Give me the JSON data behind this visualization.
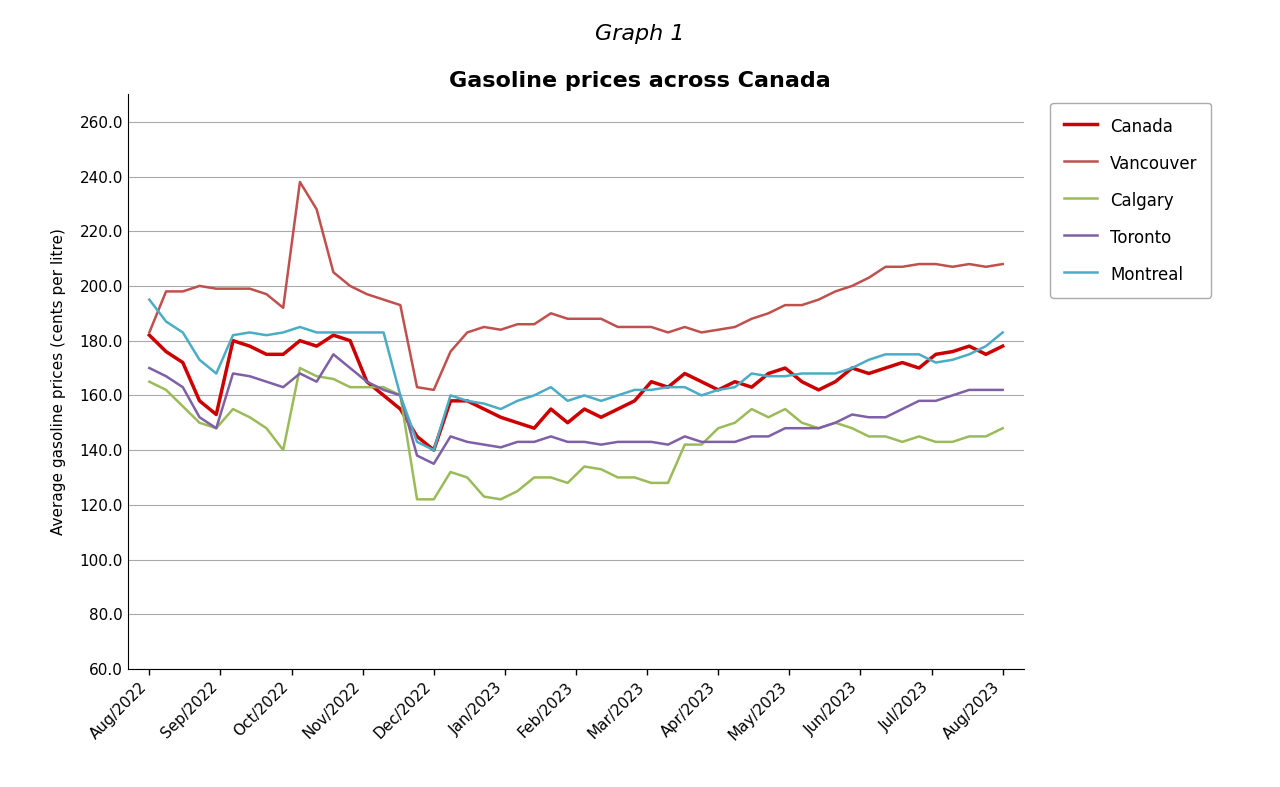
{
  "title_line1": "Graph 1",
  "title_line2": "Gasoline prices across Canada",
  "ylabel": "Average gasoline prices (cents per litre)",
  "ylim": [
    60.0,
    270.0
  ],
  "yticks": [
    60.0,
    80.0,
    100.0,
    120.0,
    140.0,
    160.0,
    180.0,
    200.0,
    220.0,
    240.0,
    260.0
  ],
  "x_labels": [
    "Aug/2022",
    "Sep/2022",
    "Oct/2022",
    "Nov/2022",
    "Dec/2022",
    "Jan/2023",
    "Feb/2023",
    "Mar/2023",
    "Apr/2023",
    "May/2023",
    "Jun/2023",
    "Jul/2023",
    "Aug/2023"
  ],
  "series": {
    "Canada": {
      "color": "#CC0000",
      "linewidth": 2.5,
      "values": [
        182,
        176,
        172,
        158,
        153,
        180,
        178,
        175,
        175,
        180,
        178,
        182,
        180,
        165,
        160,
        155,
        145,
        140,
        158,
        158,
        155,
        152,
        150,
        148,
        155,
        150,
        155,
        152,
        155,
        158,
        165,
        163,
        168,
        165,
        162,
        165,
        163,
        168,
        170,
        165,
        162,
        165,
        170,
        168,
        170,
        172,
        170,
        175,
        176,
        178,
        175,
        178
      ]
    },
    "Vancouver": {
      "color": "#C0504D",
      "linewidth": 1.8,
      "values": [
        183,
        198,
        198,
        200,
        199,
        199,
        199,
        197,
        192,
        238,
        228,
        205,
        200,
        197,
        195,
        193,
        163,
        162,
        176,
        183,
        185,
        184,
        186,
        186,
        190,
        188,
        188,
        188,
        185,
        185,
        185,
        183,
        185,
        183,
        184,
        185,
        188,
        190,
        193,
        193,
        195,
        198,
        200,
        203,
        207,
        207,
        208,
        208,
        207,
        208,
        207,
        208
      ]
    },
    "Calgary": {
      "color": "#9BBB59",
      "linewidth": 1.8,
      "values": [
        165,
        162,
        156,
        150,
        148,
        155,
        152,
        148,
        140,
        170,
        167,
        166,
        163,
        163,
        163,
        160,
        122,
        122,
        132,
        130,
        123,
        122,
        125,
        130,
        130,
        128,
        134,
        133,
        130,
        130,
        128,
        128,
        142,
        142,
        148,
        150,
        155,
        152,
        155,
        150,
        148,
        150,
        148,
        145,
        145,
        143,
        145,
        143,
        143,
        145,
        145,
        148
      ]
    },
    "Toronto": {
      "color": "#7F5FA5",
      "linewidth": 1.8,
      "values": [
        170,
        167,
        163,
        152,
        148,
        168,
        167,
        165,
        163,
        168,
        165,
        175,
        170,
        165,
        162,
        160,
        138,
        135,
        145,
        143,
        142,
        141,
        143,
        143,
        145,
        143,
        143,
        142,
        143,
        143,
        143,
        142,
        145,
        143,
        143,
        143,
        145,
        145,
        148,
        148,
        148,
        150,
        153,
        152,
        152,
        155,
        158,
        158,
        160,
        162,
        162,
        162
      ]
    },
    "Montreal": {
      "color": "#4BACC6",
      "linewidth": 1.8,
      "values": [
        195,
        187,
        183,
        173,
        168,
        182,
        183,
        182,
        183,
        185,
        183,
        183,
        183,
        183,
        183,
        160,
        143,
        140,
        160,
        158,
        157,
        155,
        158,
        160,
        163,
        158,
        160,
        158,
        160,
        162,
        162,
        163,
        163,
        160,
        162,
        163,
        168,
        167,
        167,
        168,
        168,
        168,
        170,
        173,
        175,
        175,
        175,
        172,
        173,
        175,
        178,
        183
      ]
    }
  },
  "n_points": 52,
  "n_ticks": 13,
  "background_color": "#FFFFFF",
  "grid_color": "#AAAAAA",
  "legend_order": [
    "Canada",
    "Vancouver",
    "Calgary",
    "Toronto",
    "Montreal"
  ]
}
